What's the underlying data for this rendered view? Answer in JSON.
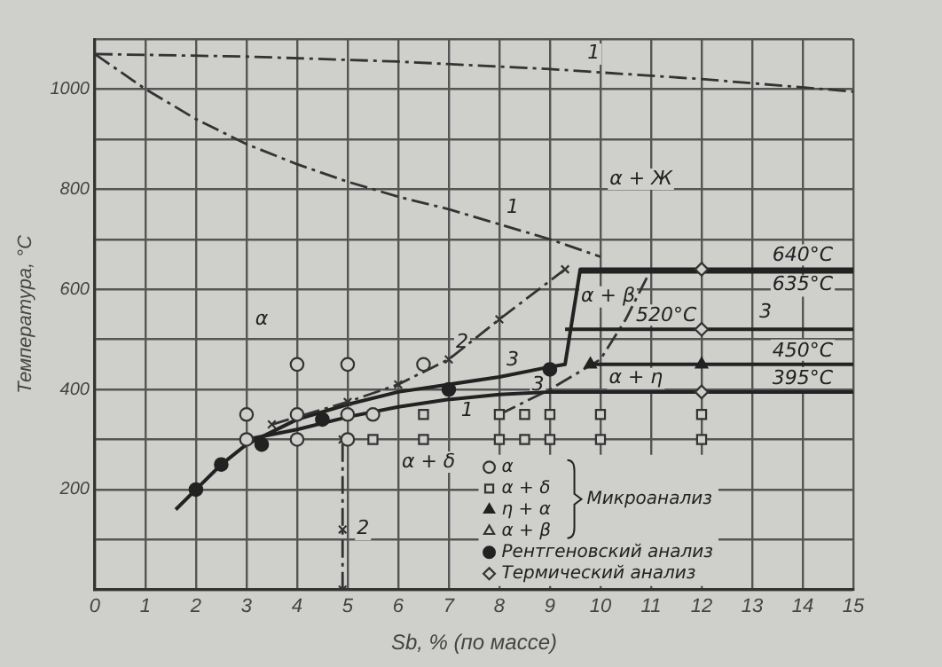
{
  "chart_data": {
    "type": "line",
    "xlabel": "Sb, % (по массе)",
    "ylabel": "Температура, °C",
    "xlim": [
      0,
      15
    ],
    "xticks": [
      0,
      1,
      2,
      3,
      4,
      5,
      6,
      7,
      8,
      9,
      10,
      11,
      12,
      13,
      14,
      15
    ],
    "ylim": [
      0,
      1100
    ],
    "yticks": [
      {
        "value": 0,
        "label": null
      },
      {
        "value": 100,
        "label": null
      },
      200,
      {
        "value": 300,
        "label": null
      },
      400,
      {
        "value": 500,
        "label": null
      },
      600,
      {
        "value": 700,
        "label": null
      },
      800,
      {
        "value": 900,
        "label": null
      },
      1000,
      {
        "value": 1100,
        "label": null
      }
    ],
    "grid": true,
    "legend": "bottom right",
    "series": [
      {
        "type": "line",
        "color": "#333333",
        "line_style": "dashed",
        "marker": "none",
        "x": [
          0,
          3,
          6,
          9,
          12,
          15
        ],
        "values": [
          1070,
          1065,
          1055,
          1040,
          1020,
          995
        ]
      },
      {
        "type": "line",
        "color": "#333333",
        "line_style": "dashed",
        "marker": "none",
        "x": [
          0,
          1,
          2,
          3,
          4,
          5,
          6,
          7,
          8,
          9,
          10
        ],
        "values": [
          1070,
          1000,
          940,
          890,
          850,
          815,
          785,
          760,
          730,
          700,
          665
        ]
      },
      {
        "type": "line",
        "color": "#333333",
        "line_style": "dashed",
        "marker": "cross",
        "x": [
          3.5,
          5,
          6,
          7,
          8,
          9.3
        ],
        "values": [
          330,
          375,
          410,
          460,
          540,
          640
        ]
      },
      {
        "type": "line",
        "color": "#333333",
        "line_style": "dashed",
        "marker": "cross",
        "x": [
          4.9,
          4.9,
          4.9
        ],
        "values": [
          0,
          120,
          300
        ]
      },
      {
        "type": "line",
        "color": "#222222",
        "line_style": "solid",
        "marker": "none",
        "x": [
          1.6,
          2,
          2.5,
          3,
          4,
          5,
          6,
          7,
          8,
          9,
          9.3,
          9.6,
          15
        ],
        "values": [
          160,
          200,
          250,
          290,
          340,
          370,
          395,
          410,
          425,
          445,
          450,
          640,
          640
        ]
      },
      {
        "type": "line",
        "color": "#222222",
        "line_style": "solid",
        "marker": "none",
        "x": [
          3,
          4,
          5,
          6,
          7,
          8,
          9,
          15
        ],
        "values": [
          300,
          320,
          345,
          365,
          380,
          390,
          395,
          395
        ]
      },
      {
        "type": "line",
        "color": "#222222",
        "line_style": "solid",
        "marker": "none",
        "x": [
          9.6,
          15
        ],
        "values": [
          635,
          635
        ]
      },
      {
        "type": "line",
        "color": "#222222",
        "line_style": "solid",
        "marker": "none",
        "x": [
          9.3,
          15
        ],
        "values": [
          520,
          520
        ]
      },
      {
        "type": "line",
        "color": "#222222",
        "line_style": "solid",
        "marker": "none",
        "x": [
          9.8,
          15
        ],
        "values": [
          450,
          450
        ]
      },
      {
        "type": "line",
        "color": "#333333",
        "line_style": "dashed",
        "marker": "none",
        "x": [
          8,
          9,
          10,
          10.5,
          11
        ],
        "values": [
          350,
          400,
          460,
          540,
          640
        ]
      },
      {
        "type": "scatter",
        "name": "α",
        "color": "#333333",
        "marker": "circle",
        "x": [
          3,
          4,
          5,
          6.5,
          4,
          5,
          5.5,
          3,
          4,
          5
        ],
        "values": [
          350,
          450,
          450,
          450,
          350,
          350,
          350,
          300,
          300,
          300
        ]
      },
      {
        "type": "scatter",
        "name": "α + δ",
        "color": "#333333",
        "marker": "square",
        "x": [
          5.5,
          6.5,
          6.5,
          8,
          8.5,
          9,
          10,
          12,
          8,
          8.5,
          9,
          10,
          12
        ],
        "values": [
          300,
          300,
          350,
          300,
          300,
          300,
          300,
          300,
          350,
          350,
          350,
          350,
          350
        ]
      },
      {
        "type": "scatter",
        "name": "η + α",
        "color": "#222222",
        "marker": "triangle",
        "x": [
          9.8,
          12
        ],
        "values": [
          450,
          450
        ]
      },
      {
        "type": "scatter",
        "name": "α + β",
        "color": "#333333",
        "marker": "triangle"
      },
      {
        "type": "scatter",
        "name": "Рентгеновский анализ",
        "color": "#222222",
        "marker": "circle",
        "x": [
          2,
          2.5,
          3.3,
          4.5,
          7,
          9
        ],
        "values": [
          200,
          250,
          290,
          340,
          400,
          440
        ]
      },
      {
        "type": "scatter",
        "name": "Термический анализ",
        "color": "#333333",
        "marker": "diamond",
        "x": [
          12,
          12,
          12
        ],
        "values": [
          640,
          520,
          395
        ]
      }
    ],
    "annotations": [
      {
        "text": "640°C",
        "x": 14,
        "y": 640
      },
      {
        "text": "635°C",
        "x": 14,
        "y": 635
      },
      {
        "text": "520°C",
        "x": 11.3,
        "y": 520
      },
      {
        "text": "450°C",
        "x": 14,
        "y": 450
      },
      {
        "text": "395°C",
        "x": 14,
        "y": 395
      },
      "α",
      "α + Ж",
      "α + β",
      "α + η",
      "α + δ",
      {
        "text": "1",
        "x": 8,
        "y": 730
      },
      {
        "text": "1",
        "x": 9.6,
        "y": 1038
      },
      {
        "text": "1",
        "x": 7.7,
        "y": 387
      },
      {
        "text": "2",
        "x": 7,
        "y": 460
      },
      {
        "text": "2",
        "x": 4.9,
        "y": 120
      },
      {
        "text": "3",
        "x": 8,
        "y": 425
      },
      {
        "text": "3",
        "x": 8.5,
        "y": 375
      },
      {
        "text": "3",
        "x": 13,
        "y": 520
      },
      "Микроанализ"
    ]
  }
}
